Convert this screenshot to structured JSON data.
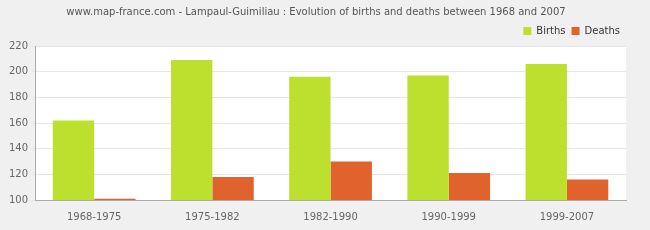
{
  "chart_data": {
    "type": "bar",
    "title": "www.map-france.com - Lampaul-Guimiliau : Evolution of births and deaths between 1968 and 2007",
    "categories": [
      "1968-1975",
      "1975-1982",
      "1982-1990",
      "1990-1999",
      "1999-2007"
    ],
    "series": [
      {
        "name": "Births",
        "color": "#bde02e",
        "values": [
          162,
          209,
          196,
          197,
          206
        ]
      },
      {
        "name": "Deaths",
        "color": "#e0632e",
        "values": [
          101,
          118,
          130,
          121,
          116
        ]
      }
    ],
    "ylim": [
      100,
      220
    ],
    "yticks": [
      100,
      120,
      140,
      160,
      180,
      200,
      220
    ],
    "grid": true,
    "legend": "upper right"
  }
}
